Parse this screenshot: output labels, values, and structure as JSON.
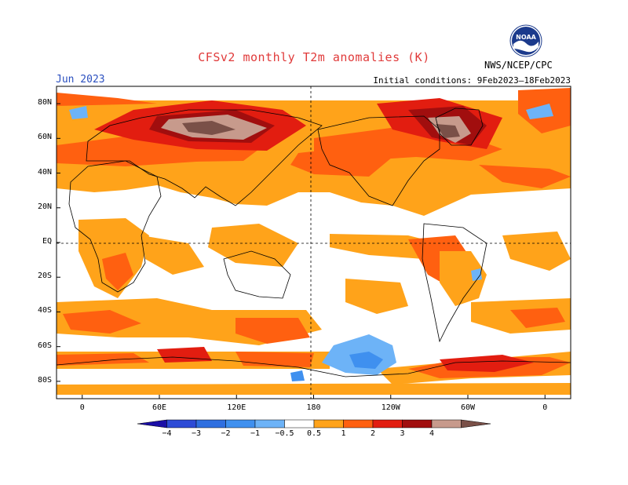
{
  "header": {
    "title": "CFSv2 monthly T2m anomalies (K)",
    "month": "Jun 2023",
    "initial_conditions": "Initial conditions: 9Feb2023–18Feb2023",
    "agency": "NWS/NCEP/CPC",
    "logo_text": "NOAA"
  },
  "map": {
    "lat_labels": [
      "80N",
      "60N",
      "40N",
      "20N",
      "EQ",
      "20S",
      "40S",
      "60S",
      "80S"
    ],
    "lon_labels": [
      "0",
      "60E",
      "120E",
      "180",
      "120W",
      "60W",
      "0"
    ],
    "lat_values": [
      80,
      60,
      40,
      20,
      0,
      -20,
      -40,
      -60,
      -80
    ],
    "lon_values": [
      0,
      60,
      120,
      180,
      240,
      300,
      360
    ],
    "lon_range": [
      -20,
      380
    ],
    "lat_range": [
      -90,
      90
    ]
  },
  "colorbar": {
    "labels": [
      "−4",
      "−3",
      "−2",
      "−1",
      "−0.5",
      "0.5",
      "1",
      "2",
      "3",
      "4"
    ],
    "colors": [
      "#1a0ea6",
      "#2d4bd6",
      "#2f6fe0",
      "#3f90ef",
      "#6db3f7",
      "#ffffff",
      "#ffa31a",
      "#ff6010",
      "#e21d10",
      "#a10e0e",
      "#c79a8c",
      "#7a5048"
    ]
  },
  "anomaly_regions": {
    "siberia_peak": "4",
    "greenland_peak": "4",
    "south_pacific_min": "-1"
  }
}
